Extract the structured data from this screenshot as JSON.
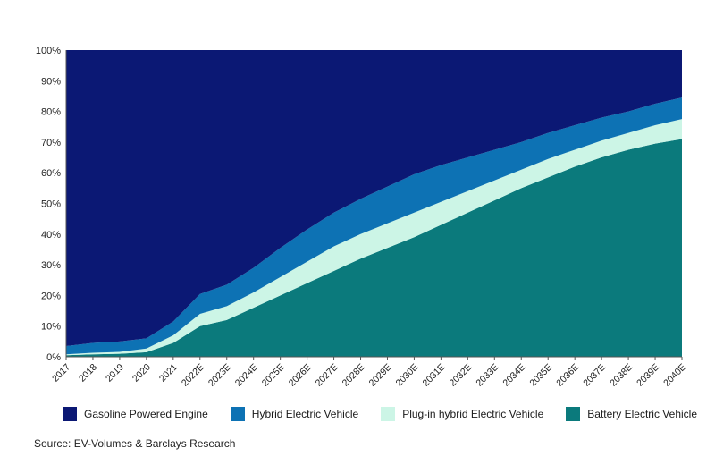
{
  "chart_data": {
    "type": "area",
    "stacked": true,
    "title": "",
    "xlabel": "",
    "ylabel": "",
    "ylim": [
      0,
      100
    ],
    "y_ticks": [
      "0%",
      "10%",
      "20%",
      "30%",
      "40%",
      "50%",
      "60%",
      "70%",
      "80%",
      "90%",
      "100%"
    ],
    "categories": [
      "2017",
      "2018",
      "2019",
      "2020",
      "2021",
      "2022E",
      "2023E",
      "2024E",
      "2025E",
      "2026E",
      "2027E",
      "2028E",
      "2029E",
      "2030E",
      "2031E",
      "2032E",
      "2033E",
      "2034E",
      "2035E",
      "2036E",
      "2037E",
      "2038E",
      "2039E",
      "2040E"
    ],
    "series": [
      {
        "name": "Battery Electric Vehicle",
        "color": "#0b7a7c",
        "values": [
          0.5,
          0.8,
          1.0,
          1.5,
          4.5,
          10.0,
          12.0,
          16.0,
          20.0,
          24.0,
          28.0,
          32.0,
          35.5,
          39.0,
          43.0,
          47.0,
          51.0,
          55.0,
          58.5,
          62.0,
          65.0,
          67.5,
          69.5,
          71.0
        ]
      },
      {
        "name": "Plug-in hybrid Electric Vehicle",
        "color": "#ccf5e6",
        "values": [
          0.3,
          0.5,
          0.6,
          1.2,
          2.5,
          4.0,
          4.5,
          5.0,
          6.0,
          7.0,
          8.0,
          8.0,
          8.0,
          8.0,
          7.5,
          7.0,
          6.5,
          6.0,
          6.0,
          5.5,
          5.5,
          5.5,
          6.0,
          6.5
        ]
      },
      {
        "name": "Hybrid Electric Vehicle",
        "color": "#0d72b4",
        "values": [
          2.7,
          3.2,
          3.4,
          3.3,
          4.5,
          6.5,
          7.0,
          8.0,
          9.5,
          10.5,
          11.0,
          11.5,
          12.0,
          12.5,
          12.0,
          11.0,
          10.0,
          9.0,
          8.5,
          8.0,
          7.5,
          7.0,
          7.0,
          7.0
        ]
      },
      {
        "name": "Gasoline Powered Engine",
        "color": "#0b1874",
        "values": [
          96.5,
          95.5,
          95.0,
          94.0,
          88.5,
          79.5,
          76.5,
          71.0,
          64.5,
          58.5,
          53.0,
          48.5,
          44.5,
          40.5,
          37.5,
          35.0,
          32.5,
          30.0,
          27.0,
          24.5,
          22.0,
          20.0,
          17.5,
          15.5
        ]
      }
    ],
    "legend_position": "bottom",
    "legend_order": [
      "Gasoline Powered Engine",
      "Hybrid Electric Vehicle",
      "Plug-in hybrid Electric Vehicle",
      "Battery Electric Vehicle"
    ]
  },
  "source": "Source: EV-Volumes & Barclays Research"
}
